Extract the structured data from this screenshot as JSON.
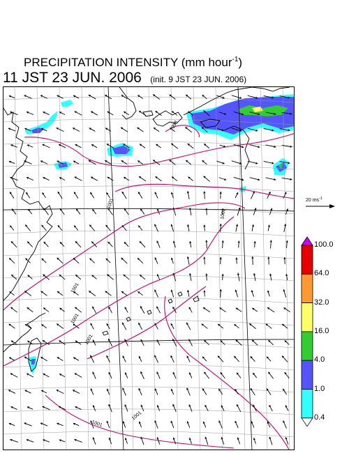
{
  "header": {
    "title_text": "PRECIPITATION INTENSITY (mm hour",
    "title_exponent": "-1",
    "title_close": ")",
    "valid_time": "11 JST 23 JUN. 2006",
    "init_time": "(init. 9 JST 23 JUN. 2006)"
  },
  "wind_reference": {
    "label_text": "20 ms",
    "label_exponent": "-1"
  },
  "colorbar": {
    "levels": [
      "100.0",
      "64.0",
      "32.0",
      "16.0",
      "4.0",
      "1.0",
      "0.4"
    ],
    "colors": [
      "#cc00ff",
      "#e60000",
      "#ff9933",
      "#ffff66",
      "#33cc33",
      "#5555ff",
      "#33ffff",
      "#ffffff"
    ]
  },
  "isobars": {
    "labels": [
      "998",
      "1001",
      "1001",
      "1001",
      "1001",
      "1001",
      "1001",
      "1001"
    ],
    "color": "#cc0066"
  },
  "map_colors": {
    "coast": "#000000",
    "grid": "#999999",
    "wind": "#000000"
  }
}
